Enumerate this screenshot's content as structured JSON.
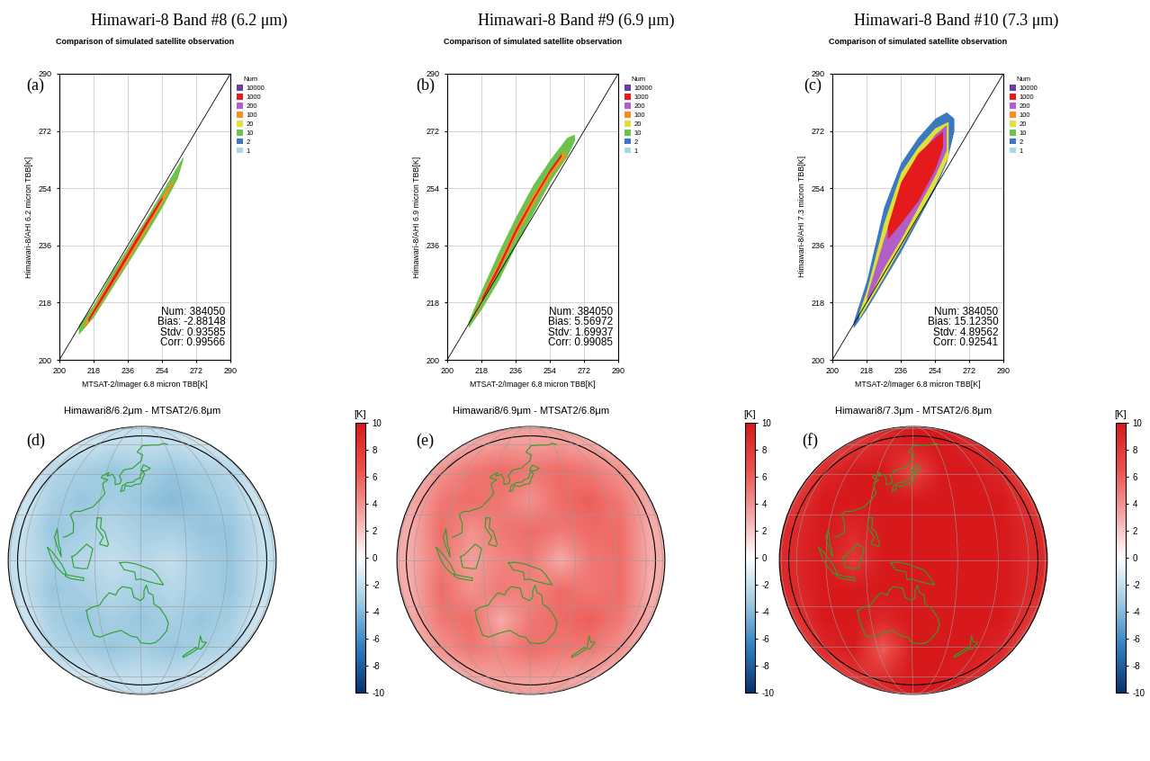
{
  "chart_data": [
    {
      "type": "density_scatter",
      "panel_label": "(a)",
      "subtitle": "Himawari-8 Band #8 (6.2 μm)",
      "title": "Comparison of simulated satellite observation",
      "x_label": "MTSAT-2/Imager 6.8 micron TBB[K]",
      "y_label": "Himawari-8/AHI 6.2 micron TBB[K]",
      "xlim": [
        200,
        290
      ],
      "ylim": [
        200,
        290
      ],
      "xticks": [
        200,
        218,
        236,
        254,
        272,
        290
      ],
      "yticks": [
        200,
        218,
        236,
        254,
        272,
        290
      ],
      "grid": true,
      "legend": "right",
      "legend_title": "Num",
      "levels": [
        {
          "value": 10000,
          "color": "#6b3fa0"
        },
        {
          "value": 1000,
          "color": "#e41a1c"
        },
        {
          "value": 200,
          "color": "#b25ec9"
        },
        {
          "value": 100,
          "color": "#ff8c1a"
        },
        {
          "value": 20,
          "color": "#e0e03a"
        },
        {
          "value": 10,
          "color": "#6cc24a"
        },
        {
          "value": 2,
          "color": "#3b78c2"
        },
        {
          "value": 1,
          "color": "#a8d8e8"
        }
      ],
      "layers": [
        {
          "level": 10,
          "x": [
            210,
            218,
            227,
            236,
            245,
            254,
            262,
            265
          ],
          "y_low": [
            208,
            213.5,
            222,
            230.5,
            239,
            248,
            257,
            263
          ],
          "y_high": [
            211,
            217.5,
            227,
            235.5,
            244,
            253,
            261,
            264
          ]
        },
        {
          "level": 100,
          "x": [
            213,
            218,
            227,
            236,
            245,
            254,
            260
          ],
          "y_low": [
            210,
            214.5,
            223,
            231.5,
            240.5,
            249.5,
            256
          ],
          "y_high": [
            211.5,
            216.5,
            225.5,
            234.5,
            243,
            251.5,
            257
          ]
        },
        {
          "level": 1000,
          "x": [
            215,
            227,
            236,
            245,
            254
          ],
          "y_low": [
            212,
            223.5,
            232.5,
            241.5,
            250.5
          ],
          "y_high": [
            213,
            225,
            234,
            243,
            251.5
          ]
        }
      ],
      "stats": [
        "Num: 384050",
        "Bias: -2.88148",
        "Stdv: 0.93585",
        "Corr: 0.99566"
      ]
    },
    {
      "type": "density_scatter",
      "panel_label": "(b)",
      "subtitle": "Himawari-8 Band #9 (6.9 μm)",
      "title": "Comparison of simulated satellite observation",
      "x_label": "MTSAT-2/Imager 6.8 micron TBB[K]",
      "y_label": "Himawari-8/AHI 6.9 micron TBB[K]",
      "xlim": [
        200,
        290
      ],
      "ylim": [
        200,
        290
      ],
      "xticks": [
        200,
        218,
        236,
        254,
        272,
        290
      ],
      "yticks": [
        200,
        218,
        236,
        254,
        272,
        290
      ],
      "grid": true,
      "legend": "right",
      "legend_title": "Num",
      "levels": [
        {
          "value": 10000,
          "color": "#6b3fa0"
        },
        {
          "value": 1000,
          "color": "#e41a1c"
        },
        {
          "value": 200,
          "color": "#b25ec9"
        },
        {
          "value": 100,
          "color": "#ff8c1a"
        },
        {
          "value": 20,
          "color": "#e0e03a"
        },
        {
          "value": 10,
          "color": "#6cc24a"
        },
        {
          "value": 2,
          "color": "#3b78c2"
        },
        {
          "value": 1,
          "color": "#a8d8e8"
        }
      ],
      "layers": [
        {
          "level": 10,
          "x": [
            211,
            218,
            227,
            236,
            245,
            254,
            263,
            267
          ],
          "y_low": [
            210,
            216,
            225,
            236,
            246,
            256,
            264,
            269
          ],
          "y_high": [
            212,
            222,
            234,
            245,
            255,
            263,
            270,
            271
          ]
        },
        {
          "level": 100,
          "x": [
            214,
            218,
            227,
            236,
            245,
            254,
            262
          ],
          "y_low": [
            213,
            218,
            228,
            239,
            249,
            258,
            264
          ],
          "y_high": [
            214,
            220,
            231,
            242,
            252,
            260,
            266
          ]
        },
        {
          "level": 1000,
          "x": [
            218,
            227,
            236,
            245,
            254,
            260
          ],
          "y_low": [
            218.5,
            228.5,
            240,
            250,
            259,
            264
          ],
          "y_high": [
            219.5,
            230,
            241.5,
            251,
            260,
            265
          ]
        }
      ],
      "stats": [
        "Num: 384050",
        "Bias: 5.56972",
        "Stdv: 1.69937",
        "Corr: 0.99085"
      ]
    },
    {
      "type": "density_scatter",
      "panel_label": "(c)",
      "subtitle": "Himawari-8 Band #10 (7.3 μm)",
      "title": "Comparison of simulated satellite observation",
      "x_label": "MTSAT-2/Imager 6.8 micron TBB[K]",
      "y_label": "Himawari-8/AHI 7.3 micron TBB[K]",
      "xlim": [
        200,
        290
      ],
      "ylim": [
        200,
        290
      ],
      "xticks": [
        200,
        218,
        236,
        254,
        272,
        290
      ],
      "yticks": [
        200,
        218,
        236,
        254,
        272,
        290
      ],
      "grid": true,
      "legend": "right",
      "legend_title": "Num",
      "levels": [
        {
          "value": 10000,
          "color": "#6b3fa0"
        },
        {
          "value": 1000,
          "color": "#e41a1c"
        },
        {
          "value": 200,
          "color": "#b25ec9"
        },
        {
          "value": 100,
          "color": "#ff8c1a"
        },
        {
          "value": 20,
          "color": "#e0e03a"
        },
        {
          "value": 10,
          "color": "#6cc24a"
        },
        {
          "value": 2,
          "color": "#3b78c2"
        },
        {
          "value": 1,
          "color": "#a8d8e8"
        }
      ],
      "layers": [
        {
          "level": 2,
          "x": [
            211,
            218,
            227,
            236,
            245,
            254,
            260,
            264
          ],
          "y_low": [
            210,
            216,
            225,
            234,
            244,
            254,
            262,
            272
          ],
          "y_high": [
            212,
            225,
            248,
            262,
            270,
            276,
            278,
            276
          ]
        },
        {
          "level": 20,
          "x": [
            214,
            218,
            227,
            236,
            245,
            254,
            261
          ],
          "y_low": [
            213,
            217,
            226,
            235.5,
            245,
            255,
            264
          ],
          "y_high": [
            215,
            222,
            243,
            259,
            267,
            273,
            275
          ]
        },
        {
          "level": 200,
          "x": [
            218,
            227,
            236,
            245,
            254,
            260
          ],
          "y_low": [
            218,
            229,
            238,
            248,
            258,
            266
          ],
          "y_high": [
            220,
            238,
            255,
            264,
            271,
            274
          ]
        },
        {
          "level": 1000,
          "x": [
            229,
            236,
            245,
            254,
            258
          ],
          "y_low": [
            238,
            243,
            250,
            260,
            267
          ],
          "y_high": [
            242,
            256,
            265,
            270,
            272
          ]
        }
      ],
      "stats": [
        "Num: 384050",
        "Bias: 15.12350",
        "Stdv: 4.89562",
        "Corr: 0.92541"
      ]
    },
    {
      "type": "map",
      "panel_label": "(d)",
      "title": "Himawari8/6.2μm - MTSAT2/6.8μm",
      "cells": [
        [
          -1,
          -1,
          -1.5,
          -2,
          -2,
          -2,
          -1.5,
          -1,
          -1
        ],
        [
          -1,
          -2.5,
          -3,
          -3.5,
          -3,
          -3.5,
          -3,
          -2.5,
          -1
        ],
        [
          -1.5,
          -3,
          -3.5,
          -3,
          -3.5,
          -4,
          -3.5,
          -3,
          -1.5
        ],
        [
          -2,
          -3.5,
          -3,
          -2.5,
          -3,
          -3,
          -3.5,
          -3.5,
          -2
        ],
        [
          -2,
          -3,
          -2.5,
          -2,
          -2.5,
          -2,
          -3,
          -3.5,
          -2
        ],
        [
          -2,
          -3.5,
          -3,
          -2.5,
          -3,
          -2.5,
          -3,
          -3.5,
          -2
        ],
        [
          -1.5,
          -3,
          -3.5,
          -3,
          -3.5,
          -3,
          -3.5,
          -3,
          -1.5
        ],
        [
          -1,
          -2.5,
          -3,
          -3.5,
          -3,
          -3.5,
          -3,
          -2.5,
          -1
        ],
        [
          -1,
          -1,
          -1.5,
          -2,
          -2,
          -2,
          -1.5,
          -1,
          -1
        ]
      ],
      "colorbar": {
        "label": "[K]",
        "range": [
          -10,
          10
        ],
        "ticks": [
          -10,
          -8,
          -6,
          -4,
          -2,
          0,
          2,
          4,
          6,
          8,
          10
        ]
      }
    },
    {
      "type": "map",
      "panel_label": "(e)",
      "title": "Himawari8/6.9μm - MTSAT2/6.8μm",
      "cells": [
        [
          2,
          2,
          3,
          3.5,
          3.5,
          3.5,
          3,
          2,
          2
        ],
        [
          2,
          4,
          5,
          5.5,
          5,
          5.5,
          5,
          4,
          2
        ],
        [
          3,
          5,
          5.5,
          5,
          4,
          5.5,
          6,
          5,
          3
        ],
        [
          3,
          5.5,
          4,
          5,
          5.5,
          5,
          5.5,
          5.5,
          3
        ],
        [
          3,
          5,
          3.5,
          4.5,
          5,
          3,
          5,
          5.5,
          3
        ],
        [
          3,
          5.5,
          4,
          5,
          4.5,
          5.5,
          5,
          5.5,
          3
        ],
        [
          3,
          5,
          5.5,
          3,
          5,
          5.5,
          6,
          5,
          3
        ],
        [
          2,
          4,
          5,
          4.5,
          5.5,
          5,
          5,
          4,
          2
        ],
        [
          2,
          2,
          3,
          3.5,
          3.5,
          3.5,
          3,
          2,
          2
        ]
      ],
      "colorbar": {
        "label": "[K]",
        "range": [
          -10,
          10
        ],
        "ticks": [
          -10,
          -8,
          -6,
          -4,
          -2,
          0,
          2,
          4,
          6,
          8,
          10
        ]
      }
    },
    {
      "type": "map",
      "panel_label": "(f)",
      "title": "Himawari8/7.3μm - MTSAT2/6.8μm",
      "cells": [
        [
          6,
          6,
          8,
          9,
          10,
          10,
          9,
          8,
          6
        ],
        [
          6,
          9,
          10,
          10,
          7,
          10,
          10,
          9,
          6
        ],
        [
          8,
          10,
          10,
          10,
          10,
          10,
          10,
          10,
          8
        ],
        [
          9,
          10,
          9,
          10,
          10,
          10,
          10,
          10,
          9
        ],
        [
          9,
          10,
          8,
          10,
          10,
          10,
          10,
          10,
          9
        ],
        [
          9,
          10,
          10,
          10,
          10,
          10,
          10,
          10,
          9
        ],
        [
          8,
          10,
          10,
          9,
          10,
          10,
          10,
          10,
          8
        ],
        [
          6,
          9,
          10,
          6,
          10,
          10,
          10,
          9,
          6
        ],
        [
          6,
          6,
          8,
          9,
          10,
          10,
          9,
          8,
          6
        ]
      ],
      "colorbar": {
        "label": "[K]",
        "range": [
          -10,
          10
        ],
        "ticks": [
          -10,
          -8,
          -6,
          -4,
          -2,
          0,
          2,
          4,
          6,
          8,
          10
        ]
      }
    }
  ]
}
